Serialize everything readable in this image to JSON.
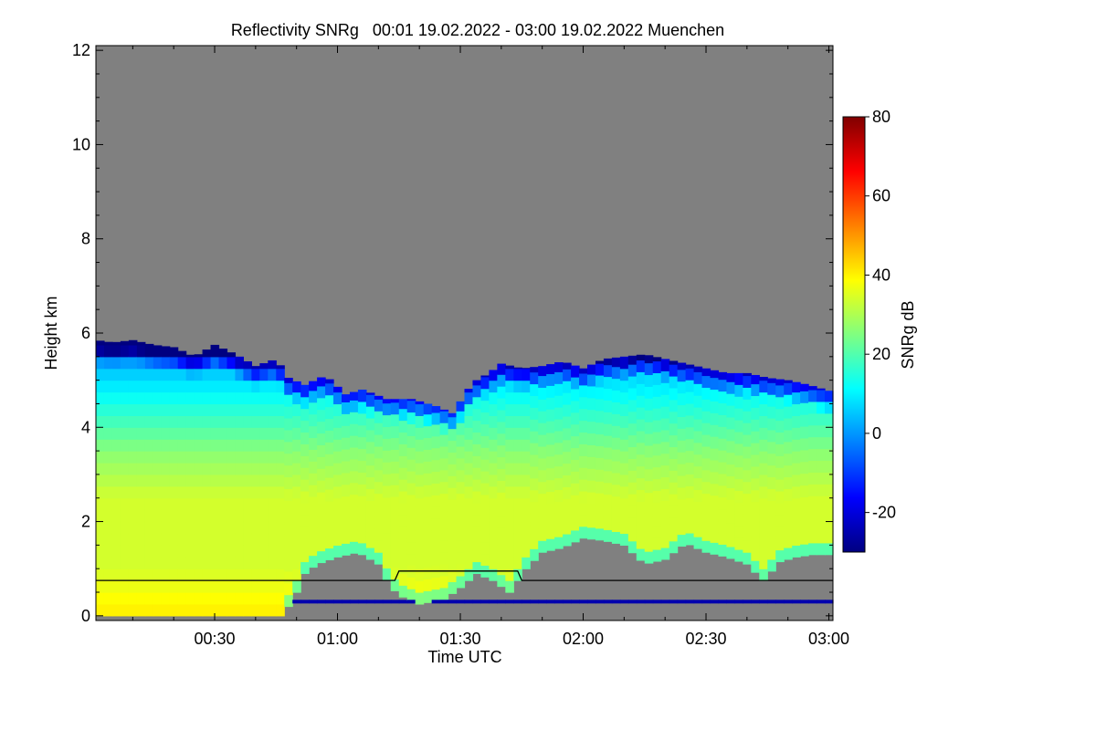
{
  "chart_data": {
    "type": "heatmap",
    "title": "Reflectivity SNRg   00:01 19.02.2022 - 03:00 19.02.2022 Muenchen",
    "xlabel": "Time UTC",
    "ylabel": "Height km",
    "xlim_min": [
      1,
      181
    ],
    "ylim": [
      -0.1,
      12.1
    ],
    "x_ticks_min": [
      30,
      60,
      90,
      120,
      150,
      180
    ],
    "x_tick_labels": [
      "00:30",
      "01:00",
      "01:30",
      "02:00",
      "02:30",
      "03:00"
    ],
    "y_ticks": [
      0,
      2,
      4,
      6,
      8,
      10,
      12
    ],
    "y_tick_labels": [
      "0",
      "2",
      "4",
      "6",
      "8",
      "10",
      "12"
    ],
    "background_color": "#808080",
    "colorbar": {
      "label": "SNRg dB",
      "range": [
        -30,
        80
      ],
      "ticks": [
        -20,
        0,
        20,
        40,
        60,
        80
      ],
      "tick_labels": [
        "-20",
        "0",
        "20",
        "40",
        "60",
        "80"
      ],
      "colormap": [
        "#000080",
        "#0000ff",
        "#0080ff",
        "#00ffff",
        "#80ff80",
        "#ffff00",
        "#ff8000",
        "#ff0000",
        "#800000"
      ]
    },
    "cloud_top_km": [
      [
        1,
        5.85
      ],
      [
        5,
        5.8
      ],
      [
        10,
        5.85
      ],
      [
        15,
        5.75
      ],
      [
        20,
        5.7
      ],
      [
        25,
        5.5
      ],
      [
        30,
        5.75
      ],
      [
        35,
        5.55
      ],
      [
        40,
        5.3
      ],
      [
        45,
        5.45
      ],
      [
        48,
        5.05
      ],
      [
        52,
        4.9
      ],
      [
        57,
        5.1
      ],
      [
        62,
        4.7
      ],
      [
        66,
        4.8
      ],
      [
        72,
        4.6
      ],
      [
        78,
        4.6
      ],
      [
        84,
        4.45
      ],
      [
        88,
        4.3
      ],
      [
        90,
        4.55
      ],
      [
        93,
        4.95
      ],
      [
        97,
        5.15
      ],
      [
        100,
        5.35
      ],
      [
        105,
        5.25
      ],
      [
        110,
        5.3
      ],
      [
        115,
        5.4
      ],
      [
        120,
        5.25
      ],
      [
        125,
        5.45
      ],
      [
        130,
        5.5
      ],
      [
        135,
        5.55
      ],
      [
        140,
        5.45
      ],
      [
        145,
        5.35
      ],
      [
        150,
        5.25
      ],
      [
        155,
        5.15
      ],
      [
        160,
        5.15
      ],
      [
        165,
        5.05
      ],
      [
        170,
        5.0
      ],
      [
        175,
        4.9
      ],
      [
        181,
        4.75
      ]
    ],
    "cloud_base_km": [
      [
        1,
        0.0
      ],
      [
        10,
        0.0
      ],
      [
        20,
        0.0
      ],
      [
        30,
        0.0
      ],
      [
        40,
        0.0
      ],
      [
        46,
        0.0
      ],
      [
        49,
        0.3
      ],
      [
        52,
        0.9
      ],
      [
        55,
        1.1
      ],
      [
        60,
        1.25
      ],
      [
        65,
        1.35
      ],
      [
        70,
        1.1
      ],
      [
        73,
        0.6
      ],
      [
        76,
        0.4
      ],
      [
        80,
        0.25
      ],
      [
        86,
        0.35
      ],
      [
        90,
        0.6
      ],
      [
        94,
        0.9
      ],
      [
        98,
        0.75
      ],
      [
        102,
        0.5
      ],
      [
        106,
        1.0
      ],
      [
        110,
        1.35
      ],
      [
        115,
        1.45
      ],
      [
        120,
        1.65
      ],
      [
        125,
        1.6
      ],
      [
        130,
        1.5
      ],
      [
        135,
        1.1
      ],
      [
        140,
        1.2
      ],
      [
        145,
        1.55
      ],
      [
        150,
        1.35
      ],
      [
        155,
        1.25
      ],
      [
        160,
        1.1
      ],
      [
        164,
        0.75
      ],
      [
        168,
        1.15
      ],
      [
        172,
        1.25
      ],
      [
        176,
        1.3
      ],
      [
        181,
        1.3
      ]
    ],
    "snr_core_profile": [
      {
        "height_km": 0.2,
        "snr_db": 40
      },
      {
        "height_km": 1.0,
        "snr_db": 34
      },
      {
        "height_km": 2.5,
        "snr_db": 34
      },
      {
        "height_km": 3.5,
        "snr_db": 26
      },
      {
        "height_km": 4.5,
        "snr_db": 14
      },
      {
        "height_km": 5.3,
        "snr_db": 4
      },
      {
        "height_km": 5.8,
        "snr_db": -18
      }
    ],
    "instrument_line_km": [
      [
        1,
        0.75
      ],
      [
        74,
        0.75
      ],
      [
        75,
        0.95
      ],
      [
        104,
        0.95
      ],
      [
        105,
        0.75
      ],
      [
        181,
        0.75
      ]
    ],
    "clutter_band_km": 0.3
  }
}
